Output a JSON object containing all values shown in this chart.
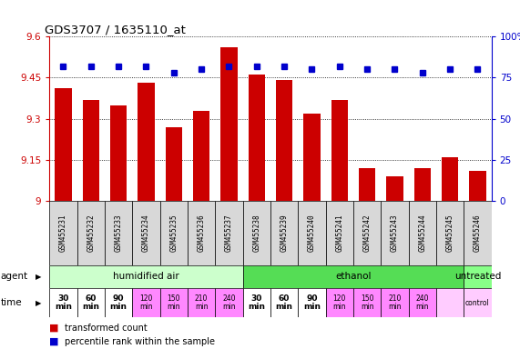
{
  "title": "GDS3707 / 1635110_at",
  "samples": [
    "GSM455231",
    "GSM455232",
    "GSM455233",
    "GSM455234",
    "GSM455235",
    "GSM455236",
    "GSM455237",
    "GSM455238",
    "GSM455239",
    "GSM455240",
    "GSM455241",
    "GSM455242",
    "GSM455243",
    "GSM455244",
    "GSM455245",
    "GSM455246"
  ],
  "bar_values": [
    9.41,
    9.37,
    9.35,
    9.43,
    9.27,
    9.33,
    9.56,
    9.46,
    9.44,
    9.32,
    9.37,
    9.12,
    9.09,
    9.12,
    9.16,
    9.11
  ],
  "dot_values": [
    82,
    82,
    82,
    82,
    78,
    80,
    82,
    82,
    82,
    80,
    82,
    80,
    80,
    78,
    80,
    80
  ],
  "ylim": [
    9.0,
    9.6
  ],
  "y_ticks": [
    9.0,
    9.15,
    9.3,
    9.45,
    9.6
  ],
  "y_tick_labels": [
    "9",
    "9.15",
    "9.3",
    "9.45",
    "9.6"
  ],
  "right_yticks": [
    0,
    25,
    50,
    75,
    100
  ],
  "right_ylabels": [
    "0",
    "25",
    "50",
    "75",
    "100%"
  ],
  "bar_color": "#cc0000",
  "dot_color": "#0000cc",
  "group_spans": [
    [
      0,
      7,
      "humidified air",
      "#ccffcc"
    ],
    [
      7,
      15,
      "ethanol",
      "#55dd55"
    ],
    [
      15,
      16,
      "untreated",
      "#88ff88"
    ]
  ],
  "time_labels": [
    "30\nmin",
    "60\nmin",
    "90\nmin",
    "120\nmin",
    "150\nmin",
    "210\nmin",
    "240\nmin",
    "30\nmin",
    "60\nmin",
    "90\nmin",
    "120\nmin",
    "150\nmin",
    "210\nmin",
    "240\nmin",
    "",
    "control"
  ],
  "time_bg": [
    "white",
    "white",
    "white",
    "#ff88ff",
    "#ff88ff",
    "#ff88ff",
    "#ff88ff",
    "white",
    "white",
    "white",
    "#ff88ff",
    "#ff88ff",
    "#ff88ff",
    "#ff88ff",
    "#ffccff",
    "#ffccff"
  ],
  "time_bold": [
    true,
    true,
    true,
    false,
    false,
    false,
    false,
    true,
    true,
    true,
    false,
    false,
    false,
    false,
    false,
    false
  ],
  "legend_red": "transformed count",
  "legend_blue": "percentile rank within the sample",
  "bar_color_legend": "#cc0000",
  "dot_color_legend": "#0000cc",
  "left_axis_color": "#cc0000",
  "right_axis_color": "#0000cc"
}
